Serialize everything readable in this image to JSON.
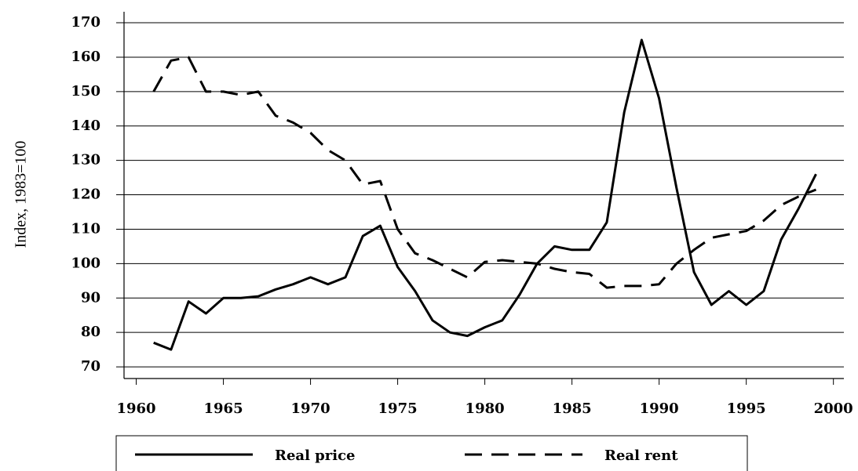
{
  "chart_data": {
    "type": "line",
    "y_label": "Index, 1983=100",
    "x": [
      1961,
      1962,
      1963,
      1964,
      1965,
      1966,
      1967,
      1968,
      1969,
      1970,
      1971,
      1972,
      1973,
      1974,
      1975,
      1976,
      1977,
      1978,
      1979,
      1980,
      1981,
      1982,
      1983,
      1984,
      1985,
      1986,
      1987,
      1988,
      1989,
      1990,
      1991,
      1992,
      1993,
      1994,
      1995,
      1996,
      1997,
      1998,
      1999
    ],
    "series": [
      {
        "name": "Real price",
        "color": "#000000",
        "dash": "solid",
        "values": [
          77,
          75,
          89,
          85.5,
          90,
          90,
          90.5,
          92.5,
          94,
          96,
          94,
          96,
          108,
          111,
          99,
          92,
          83.5,
          80,
          79,
          81.5,
          83.5,
          91,
          100,
          105,
          104,
          104,
          112,
          144,
          165,
          148,
          122,
          97.5,
          88,
          92,
          88,
          92,
          107,
          116,
          126
        ]
      },
      {
        "name": "Real rent",
        "color": "#000000",
        "dash": "dashed",
        "values": [
          150,
          159,
          160,
          150,
          150,
          149,
          150,
          143,
          141,
          138,
          133,
          130,
          123,
          124,
          110,
          103,
          101,
          98.5,
          96,
          100.5,
          101,
          100.5,
          100,
          98.5,
          97.5,
          97,
          93,
          93.5,
          93.5,
          94,
          100,
          104,
          107.5,
          108.5,
          109.5,
          112.5,
          117,
          119.5,
          121.5
        ]
      }
    ],
    "xlim": [
      1959.3,
      2000.6
    ],
    "xticks": [
      1960,
      1965,
      1970,
      1975,
      1980,
      1985,
      1990,
      1995,
      2000
    ],
    "ylim": [
      66.6,
      173.2
    ],
    "yticks": [
      70,
      80,
      90,
      100,
      110,
      120,
      130,
      140,
      150,
      160,
      170
    ],
    "grid": true,
    "legend": "bottom"
  }
}
